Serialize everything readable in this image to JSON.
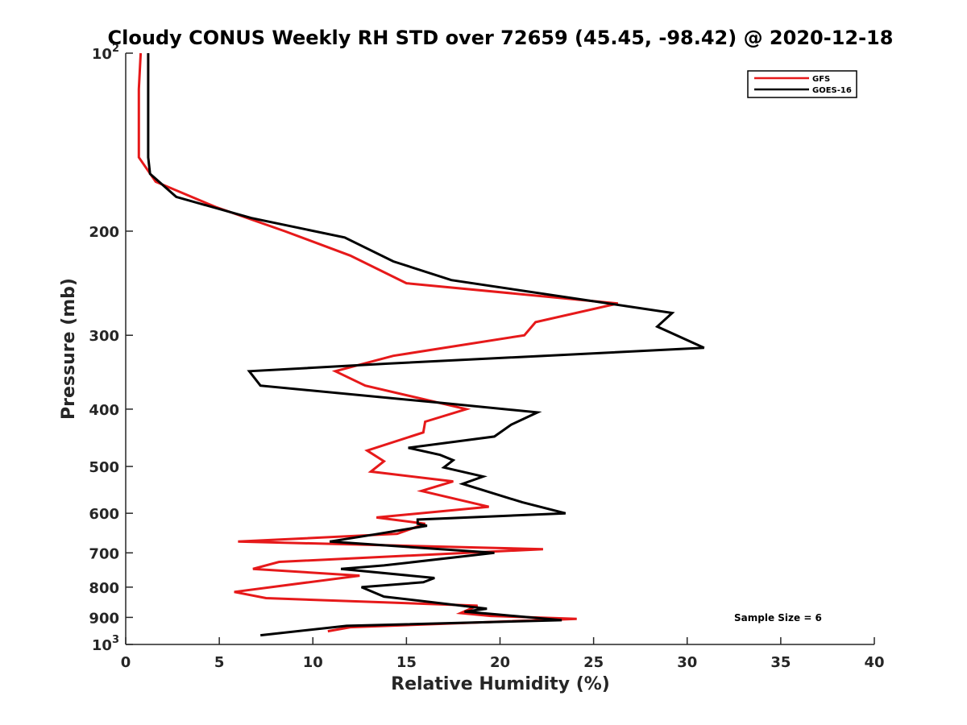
{
  "chart_data": {
    "type": "line",
    "title": "Cloudy CONUS Weekly RH STD over 72659 (45.45, -98.42) @ 2020-12-18",
    "xlabel": "Relative Humidity (%)",
    "ylabel": "Pressure (mb)",
    "xlim": [
      0,
      40
    ],
    "ylim": [
      100,
      1000
    ],
    "y_scale": "log",
    "y_reversed": true,
    "grid": false,
    "legend_position": "top-right",
    "x_ticks": [
      0,
      5,
      10,
      15,
      20,
      25,
      30,
      35,
      40
    ],
    "y_ticks": [
      100,
      200,
      300,
      400,
      500,
      600,
      700,
      800,
      900,
      1000
    ],
    "y_tick_labels": [
      {
        "base": "10",
        "exp": "2"
      },
      {
        "base": "200",
        "exp": ""
      },
      {
        "base": "300",
        "exp": ""
      },
      {
        "base": "400",
        "exp": ""
      },
      {
        "base": "500",
        "exp": ""
      },
      {
        "base": "600",
        "exp": ""
      },
      {
        "base": "700",
        "exp": ""
      },
      {
        "base": "800",
        "exp": ""
      },
      {
        "base": "900",
        "exp": ""
      },
      {
        "base": "10",
        "exp": "3"
      }
    ],
    "annotation": "Sample Size = 6",
    "series": [
      {
        "name": "GFS",
        "color": "#e6191a",
        "points": [
          [
            0.8,
            100
          ],
          [
            0.7,
            115
          ],
          [
            0.7,
            135
          ],
          [
            0.7,
            150
          ],
          [
            1.6,
            165
          ],
          [
            4.8,
            182
          ],
          [
            8.5,
            200
          ],
          [
            12.0,
            220
          ],
          [
            15.0,
            245
          ],
          [
            26.3,
            265
          ],
          [
            21.9,
            285
          ],
          [
            21.3,
            300
          ],
          [
            14.3,
            325
          ],
          [
            11.2,
            345
          ],
          [
            12.8,
            365
          ],
          [
            18.2,
            400
          ],
          [
            16.0,
            420
          ],
          [
            15.9,
            438
          ],
          [
            12.9,
            470
          ],
          [
            13.8,
            490
          ],
          [
            13.1,
            510
          ],
          [
            17.5,
            530
          ],
          [
            15.8,
            550
          ],
          [
            19.4,
            585
          ],
          [
            13.4,
            610
          ],
          [
            16.0,
            625
          ],
          [
            14.5,
            650
          ],
          [
            6.0,
            670
          ],
          [
            22.3,
            690
          ],
          [
            8.2,
            725
          ],
          [
            6.8,
            745
          ],
          [
            12.5,
            765
          ],
          [
            5.8,
            815
          ],
          [
            7.5,
            835
          ],
          [
            18.8,
            860
          ],
          [
            17.9,
            885
          ],
          [
            19.5,
            895
          ],
          [
            24.1,
            905
          ],
          [
            12.0,
            935
          ],
          [
            10.8,
            950
          ]
        ]
      },
      {
        "name": "GOES-16",
        "color": "#000000",
        "points": [
          [
            1.2,
            100
          ],
          [
            1.2,
            150
          ],
          [
            1.3,
            160
          ],
          [
            2.7,
            175
          ],
          [
            6.7,
            190
          ],
          [
            11.7,
            205
          ],
          [
            14.3,
            225
          ],
          [
            17.4,
            242
          ],
          [
            29.2,
            275
          ],
          [
            28.4,
            290
          ],
          [
            30.9,
            315
          ],
          [
            14.0,
            335
          ],
          [
            6.6,
            345
          ],
          [
            7.2,
            365
          ],
          [
            16.7,
            390
          ],
          [
            22.0,
            405
          ],
          [
            20.6,
            425
          ],
          [
            19.7,
            445
          ],
          [
            15.1,
            465
          ],
          [
            16.8,
            478
          ],
          [
            17.5,
            488
          ],
          [
            17.0,
            502
          ],
          [
            19.1,
            520
          ],
          [
            18.0,
            535
          ],
          [
            21.2,
            575
          ],
          [
            23.5,
            600
          ],
          [
            15.6,
            615
          ],
          [
            15.6,
            625
          ],
          [
            16.1,
            630
          ],
          [
            13.5,
            650
          ],
          [
            10.9,
            670
          ],
          [
            19.7,
            700
          ],
          [
            13.8,
            735
          ],
          [
            11.5,
            745
          ],
          [
            16.5,
            772
          ],
          [
            15.9,
            785
          ],
          [
            12.6,
            800
          ],
          [
            13.8,
            830
          ],
          [
            19.3,
            870
          ],
          [
            18.1,
            880
          ],
          [
            19.9,
            890
          ],
          [
            23.3,
            910
          ],
          [
            11.8,
            930
          ],
          [
            7.2,
            965
          ]
        ]
      }
    ]
  }
}
